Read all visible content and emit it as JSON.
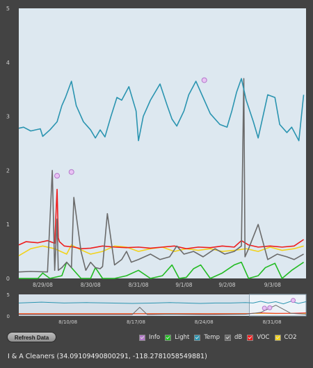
{
  "chart_data": [
    {
      "type": "line",
      "title": "",
      "xlabel": "",
      "ylabel": "",
      "ylim": [
        0,
        5
      ],
      "y_ticks": [
        "0",
        "1",
        "2",
        "3",
        "4",
        "5"
      ],
      "x_ticks": [
        "8/29/08",
        "8/30/08",
        "8/31/08",
        "9/1/08",
        "9/2/08",
        "9/3/08"
      ],
      "grid": false,
      "series": [
        {
          "name": "Temp",
          "color": "#2a94b0",
          "x": [
            0.0,
            0.2,
            0.5,
            0.9,
            1.0,
            1.3,
            1.6,
            1.8,
            1.95,
            2.2,
            2.4,
            2.7,
            3.0,
            3.2,
            3.4,
            3.6,
            3.85,
            4.1,
            4.3,
            4.6,
            4.9,
            5.0,
            5.2,
            5.5,
            5.9,
            6.2,
            6.4,
            6.6,
            6.9,
            7.1,
            7.4,
            7.7,
            8.0,
            8.4,
            8.7,
            8.9,
            9.1,
            9.3,
            9.5,
            9.8,
            10.0,
            10.4,
            10.7,
            10.9,
            11.2,
            11.4,
            11.7,
            11.9
          ],
          "values": [
            2.78,
            2.8,
            2.73,
            2.77,
            2.63,
            2.75,
            2.9,
            3.2,
            3.35,
            3.65,
            3.2,
            2.9,
            2.75,
            2.6,
            2.75,
            2.62,
            3.0,
            3.35,
            3.3,
            3.55,
            3.1,
            2.55,
            3.0,
            3.3,
            3.6,
            3.2,
            2.95,
            2.82,
            3.1,
            3.4,
            3.65,
            3.35,
            3.05,
            2.85,
            2.8,
            3.1,
            3.45,
            3.7,
            3.3,
            2.9,
            2.6,
            3.4,
            3.35,
            2.85,
            2.7,
            2.8,
            2.55,
            3.4
          ]
        },
        {
          "name": "dB",
          "color": "#6a6a6a",
          "x": [
            0.0,
            0.5,
            1.2,
            1.4,
            1.5,
            1.6,
            1.65,
            1.8,
            2.0,
            2.2,
            2.3,
            2.6,
            2.8,
            3.0,
            3.2,
            3.4,
            3.5,
            3.7,
            4.0,
            4.3,
            4.5,
            4.7,
            5.0,
            5.5,
            5.9,
            6.3,
            6.6,
            6.9,
            7.3,
            7.7,
            8.2,
            8.6,
            9.0,
            9.3,
            9.4,
            9.45,
            9.6,
            10.0,
            10.4,
            10.8,
            11.2,
            11.5,
            11.9
          ],
          "values": [
            0.12,
            0.13,
            0.12,
            2.0,
            0.15,
            1.1,
            0.15,
            0.2,
            0.3,
            0.2,
            1.5,
            0.5,
            0.15,
            0.3,
            0.2,
            0.18,
            0.22,
            1.2,
            0.25,
            0.35,
            0.5,
            0.3,
            0.35,
            0.45,
            0.35,
            0.4,
            0.6,
            0.45,
            0.5,
            0.4,
            0.55,
            0.45,
            0.5,
            0.6,
            3.7,
            0.4,
            0.55,
            1.0,
            0.35,
            0.45,
            0.4,
            0.35,
            0.45
          ]
        },
        {
          "name": "VOC",
          "color": "#ee1c1c",
          "x": [
            0.0,
            0.3,
            0.8,
            1.2,
            1.5,
            1.6,
            1.65,
            1.7,
            1.9,
            2.3,
            2.6,
            3.0,
            3.5,
            4.0,
            4.5,
            5.0,
            5.5,
            6.0,
            6.5,
            7.0,
            7.5,
            8.0,
            8.5,
            9.0,
            9.3,
            9.6,
            10.0,
            10.5,
            11.0,
            11.5,
            11.9
          ],
          "values": [
            0.62,
            0.68,
            0.66,
            0.7,
            0.65,
            1.65,
            0.75,
            0.68,
            0.6,
            0.58,
            0.55,
            0.56,
            0.6,
            0.58,
            0.57,
            0.58,
            0.56,
            0.58,
            0.6,
            0.55,
            0.58,
            0.57,
            0.6,
            0.58,
            0.7,
            0.62,
            0.58,
            0.6,
            0.58,
            0.6,
            0.72
          ]
        },
        {
          "name": "CO2",
          "color": "#f2d21a",
          "x": [
            0.0,
            0.5,
            1.0,
            1.5,
            2.0,
            2.2,
            2.5,
            3.0,
            3.5,
            4.0,
            4.5,
            5.0,
            5.5,
            6.0,
            6.5,
            7.0,
            7.5,
            8.0,
            8.5,
            9.0,
            9.5,
            10.0,
            10.5,
            11.0,
            11.5,
            11.9
          ],
          "values": [
            0.42,
            0.55,
            0.6,
            0.55,
            0.45,
            0.62,
            0.55,
            0.45,
            0.5,
            0.6,
            0.58,
            0.5,
            0.55,
            0.58,
            0.5,
            0.55,
            0.52,
            0.55,
            0.5,
            0.52,
            0.55,
            0.5,
            0.58,
            0.52,
            0.55,
            0.6
          ]
        },
        {
          "name": "Light",
          "color": "#22bb22",
          "x": [
            0.0,
            0.8,
            1.0,
            1.3,
            1.8,
            2.0,
            2.6,
            3.0,
            3.2,
            3.5,
            4.0,
            4.5,
            5.0,
            5.5,
            6.0,
            6.4,
            6.7,
            7.0,
            7.3,
            7.6,
            8.0,
            8.5,
            9.0,
            9.3,
            9.6,
            10.0,
            10.3,
            10.7,
            11.0,
            11.4,
            11.9
          ],
          "values": [
            0.0,
            0.0,
            0.1,
            0.0,
            0.05,
            0.3,
            0.0,
            0.0,
            0.2,
            0.0,
            0.0,
            0.05,
            0.15,
            0.0,
            0.05,
            0.25,
            0.0,
            0.02,
            0.18,
            0.25,
            0.0,
            0.1,
            0.25,
            0.3,
            0.0,
            0.05,
            0.2,
            0.28,
            0.0,
            0.15,
            0.3
          ]
        }
      ],
      "info_markers": [
        {
          "x": 1.6,
          "y": 1.9
        },
        {
          "x": 2.2,
          "y": 1.97
        },
        {
          "x": 7.75,
          "y": 3.67
        }
      ]
    },
    {
      "type": "line",
      "title": "",
      "ylim": [
        0,
        5
      ],
      "y_ticks": [
        "0",
        "5"
      ],
      "x_ticks": [
        "8/10/08",
        "8/17/08",
        "8/24/08",
        "8/31/08"
      ],
      "series": [
        {
          "name": "Temp",
          "color": "#2a94b0",
          "x": [
            0,
            3,
            6,
            9,
            12,
            15,
            18,
            20,
            22,
            24,
            26,
            28,
            30,
            31,
            32,
            33,
            34,
            35,
            36,
            37,
            38
          ],
          "values": [
            3.0,
            3.2,
            3.0,
            3.1,
            3.0,
            2.9,
            3.0,
            3.1,
            3.0,
            2.9,
            3.0,
            3.0,
            3.1,
            3.0,
            3.4,
            3.0,
            3.3,
            2.8,
            3.4,
            2.9,
            3.3
          ]
        },
        {
          "name": "dB",
          "color": "#6a6a6a",
          "x": [
            0,
            5,
            10,
            15,
            16,
            17,
            20,
            25,
            30,
            32,
            34,
            36,
            38
          ],
          "values": [
            0.3,
            0.3,
            0.3,
            0.3,
            2.0,
            0.3,
            0.4,
            0.3,
            0.4,
            0.8,
            2.5,
            0.6,
            0.4
          ]
        },
        {
          "name": "VOC",
          "color": "#ee1c1c",
          "x": [
            0,
            10,
            20,
            30,
            32,
            34,
            36,
            38
          ],
          "values": [
            0.5,
            0.5,
            0.5,
            0.5,
            0.7,
            0.6,
            0.6,
            0.7
          ]
        },
        {
          "name": "CO2",
          "color": "#f2d21a",
          "x": [
            0,
            10,
            20,
            30,
            32,
            34,
            36,
            38
          ],
          "values": [
            0.55,
            0.55,
            0.55,
            0.55,
            0.6,
            0.55,
            0.6,
            0.6
          ]
        }
      ],
      "info_markers": [
        {
          "x": 32.5,
          "y": 1.8
        },
        {
          "x": 33.2,
          "y": 1.9
        },
        {
          "x": 36.3,
          "y": 3.6
        }
      ]
    }
  ],
  "controls": {
    "refresh_label": "Refresh Data"
  },
  "legend": [
    {
      "label": "Info",
      "color": "#b277c9"
    },
    {
      "label": "Light",
      "color": "#22bb22"
    },
    {
      "label": "Temp",
      "color": "#2a94b0"
    },
    {
      "label": "dB",
      "color": "#6a6a6a"
    },
    {
      "label": "VOC",
      "color": "#ee1c1c"
    },
    {
      "label": "CO2",
      "color": "#f2d21a"
    }
  ],
  "location": "I & A Cleaners (34.09109490800291, -118.2781058549881)"
}
